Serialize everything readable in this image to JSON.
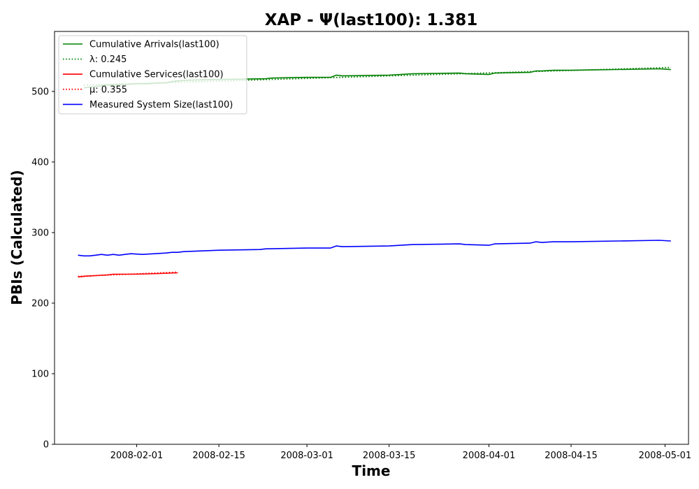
{
  "chart_data": {
    "type": "line",
    "title": "XAP -  Ψ(last100): 1.381",
    "xlabel": "Time",
    "ylabel": "PBIs (Calculated)",
    "xlim": [
      "2008-01-18",
      "2008-05-05"
    ],
    "ylim": [
      0,
      585
    ],
    "x_ticks": [
      "2008-02-01",
      "2008-02-15",
      "2008-03-01",
      "2008-03-15",
      "2008-04-01",
      "2008-04-15",
      "2008-05-01"
    ],
    "y_ticks": [
      0,
      100,
      200,
      300,
      400,
      500
    ],
    "grid": false,
    "legend_position": "top-left",
    "series": [
      {
        "name": "Cumulative Arrivals(last100)",
        "color": "#008000",
        "style": "solid",
        "points": [
          [
            "2008-01-23",
            505
          ],
          [
            "2008-01-25",
            507
          ],
          [
            "2008-01-27",
            509
          ],
          [
            "2008-01-30",
            510
          ],
          [
            "2008-02-01",
            511
          ],
          [
            "2008-02-03",
            511
          ],
          [
            "2008-02-05",
            512
          ],
          [
            "2008-02-06",
            512
          ],
          [
            "2008-02-07",
            514
          ],
          [
            "2008-02-08",
            515
          ],
          [
            "2008-02-10",
            516
          ],
          [
            "2008-02-15",
            517
          ],
          [
            "2008-02-23",
            518
          ],
          [
            "2008-02-24",
            519
          ],
          [
            "2008-03-01",
            520
          ],
          [
            "2008-03-05",
            520
          ],
          [
            "2008-03-06",
            523
          ],
          [
            "2008-03-07",
            522
          ],
          [
            "2008-03-15",
            523
          ],
          [
            "2008-03-19",
            525
          ],
          [
            "2008-03-27",
            526
          ],
          [
            "2008-03-28",
            525
          ],
          [
            "2008-04-01",
            524
          ],
          [
            "2008-04-02",
            526
          ],
          [
            "2008-04-08",
            527
          ],
          [
            "2008-04-09",
            529
          ],
          [
            "2008-04-10",
            529
          ],
          [
            "2008-04-12",
            530
          ],
          [
            "2008-04-15",
            530
          ],
          [
            "2008-04-30",
            532
          ],
          [
            "2008-05-02",
            531
          ]
        ]
      },
      {
        "name": "λ: 0.245",
        "color": "#008000",
        "style": "dotted",
        "points": [
          [
            "2008-01-23",
            509
          ],
          [
            "2008-05-02",
            534
          ]
        ]
      },
      {
        "name": "Cumulative Services(last100)",
        "color": "#ff0000",
        "style": "solid",
        "points": [
          [
            "2008-01-22",
            237
          ],
          [
            "2008-01-23",
            238
          ],
          [
            "2008-01-25",
            239
          ],
          [
            "2008-01-27",
            240
          ],
          [
            "2008-01-28",
            241
          ],
          [
            "2008-02-01",
            241
          ],
          [
            "2008-02-05",
            242
          ],
          [
            "2008-02-08",
            243
          ]
        ]
      },
      {
        "name": "μ: 0.355",
        "color": "#ff0000",
        "style": "dotted",
        "points": [
          [
            "2008-01-22",
            238
          ],
          [
            "2008-02-08",
            244
          ]
        ]
      },
      {
        "name": "Measured System Size(last100)",
        "color": "#0000ff",
        "style": "solid",
        "points": [
          [
            "2008-01-22",
            268
          ],
          [
            "2008-01-23",
            267
          ],
          [
            "2008-01-24",
            267
          ],
          [
            "2008-01-25",
            268
          ],
          [
            "2008-01-26",
            269
          ],
          [
            "2008-01-27",
            268
          ],
          [
            "2008-01-28",
            269
          ],
          [
            "2008-01-29",
            268
          ],
          [
            "2008-01-30",
            269
          ],
          [
            "2008-01-31",
            270
          ],
          [
            "2008-02-02",
            269
          ],
          [
            "2008-02-04",
            270
          ],
          [
            "2008-02-06",
            271
          ],
          [
            "2008-02-07",
            272
          ],
          [
            "2008-02-08",
            272
          ],
          [
            "2008-02-09",
            273
          ],
          [
            "2008-02-15",
            275
          ],
          [
            "2008-02-22",
            276
          ],
          [
            "2008-02-23",
            277
          ],
          [
            "2008-03-01",
            278
          ],
          [
            "2008-03-05",
            278
          ],
          [
            "2008-03-06",
            281
          ],
          [
            "2008-03-07",
            280
          ],
          [
            "2008-03-15",
            281
          ],
          [
            "2008-03-19",
            283
          ],
          [
            "2008-03-27",
            284
          ],
          [
            "2008-03-28",
            283
          ],
          [
            "2008-04-01",
            282
          ],
          [
            "2008-04-02",
            284
          ],
          [
            "2008-04-08",
            285
          ],
          [
            "2008-04-09",
            287
          ],
          [
            "2008-04-10",
            286
          ],
          [
            "2008-04-12",
            287
          ],
          [
            "2008-04-15",
            287
          ],
          [
            "2008-04-30",
            289
          ],
          [
            "2008-05-02",
            288
          ]
        ]
      }
    ]
  }
}
